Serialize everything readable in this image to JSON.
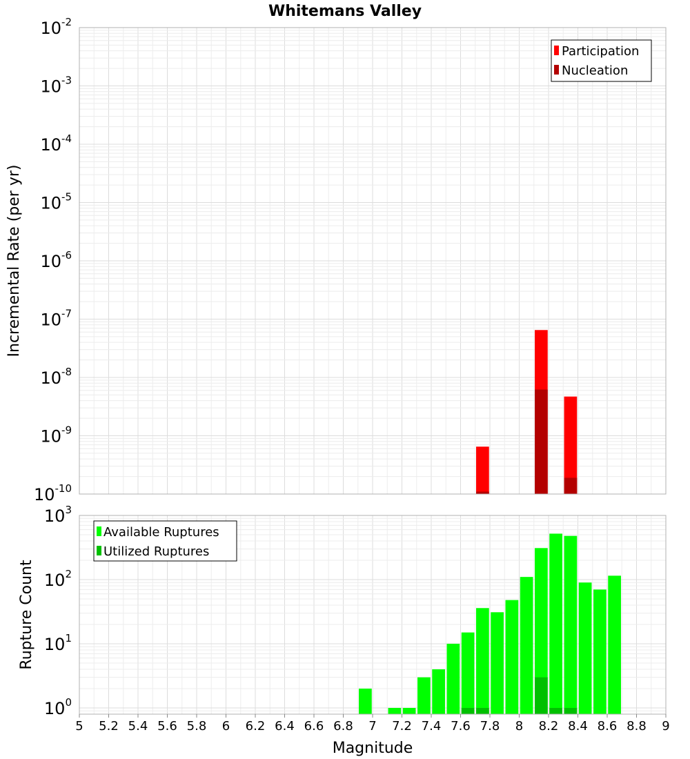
{
  "chart_data": [
    {
      "type": "bar",
      "title": "Whitemans Valley",
      "xlabel": "",
      "ylabel": "Incremental Rate (per yr)",
      "y_scale": "log",
      "xlim": [
        5,
        9
      ],
      "ylim": [
        1e-10,
        0.01
      ],
      "y_ticks": [
        {
          "base": "10",
          "exp": "-2"
        },
        {
          "base": "10",
          "exp": "-3"
        },
        {
          "base": "10",
          "exp": "-4"
        },
        {
          "base": "10",
          "exp": "-5"
        },
        {
          "base": "10",
          "exp": "-6"
        },
        {
          "base": "10",
          "exp": "-7"
        },
        {
          "base": "10",
          "exp": "-8"
        },
        {
          "base": "10",
          "exp": "-9"
        },
        {
          "base": "10",
          "exp": "-10"
        }
      ],
      "grid": true,
      "legend_position": "top-right",
      "series": [
        {
          "name": "Participation",
          "color": "#ff0000",
          "x": [
            7.75,
            8.15,
            8.35
          ],
          "values": [
            6.5e-10,
            6.5e-08,
            4.7e-09
          ]
        },
        {
          "name": "Nucleation",
          "color": "#b30000",
          "x": [
            7.75,
            8.15,
            8.35
          ],
          "values": [
            1.1e-10,
            6.2e-09,
            1.9e-10
          ]
        }
      ]
    },
    {
      "type": "bar",
      "xlabel": "Magnitude",
      "ylabel": "Rupture Count",
      "y_scale": "log",
      "xlim": [
        5,
        9
      ],
      "ylim": [
        0.8,
        1000
      ],
      "y_ticks": [
        {
          "base": "10",
          "exp": "3"
        },
        {
          "base": "10",
          "exp": "2"
        },
        {
          "base": "10",
          "exp": "1"
        },
        {
          "base": "10",
          "exp": "0"
        }
      ],
      "x_ticks": [
        "5",
        "5.2",
        "5.4",
        "5.6",
        "5.8",
        "6",
        "6.2",
        "6.4",
        "6.6",
        "6.8",
        "7",
        "7.2",
        "7.4",
        "7.6",
        "7.8",
        "8",
        "8.2",
        "8.4",
        "8.6",
        "8.8",
        "9"
      ],
      "grid": true,
      "legend_position": "top-left",
      "series": [
        {
          "name": "Available Ruptures",
          "color": "#00ff00",
          "x": [
            6.95,
            7.15,
            7.25,
            7.35,
            7.45,
            7.55,
            7.65,
            7.75,
            7.85,
            7.95,
            8.05,
            8.15,
            8.25,
            8.35,
            8.45,
            8.55,
            8.65
          ],
          "values": [
            2,
            1,
            1,
            3,
            4,
            10,
            15,
            36,
            31,
            48,
            110,
            310,
            520,
            480,
            90,
            70,
            115
          ]
        },
        {
          "name": "Utilized Ruptures",
          "color": "#00c000",
          "x": [
            7.65,
            7.75,
            8.15,
            8.25,
            8.35
          ],
          "values": [
            1,
            1,
            3,
            1,
            1
          ]
        }
      ]
    }
  ]
}
